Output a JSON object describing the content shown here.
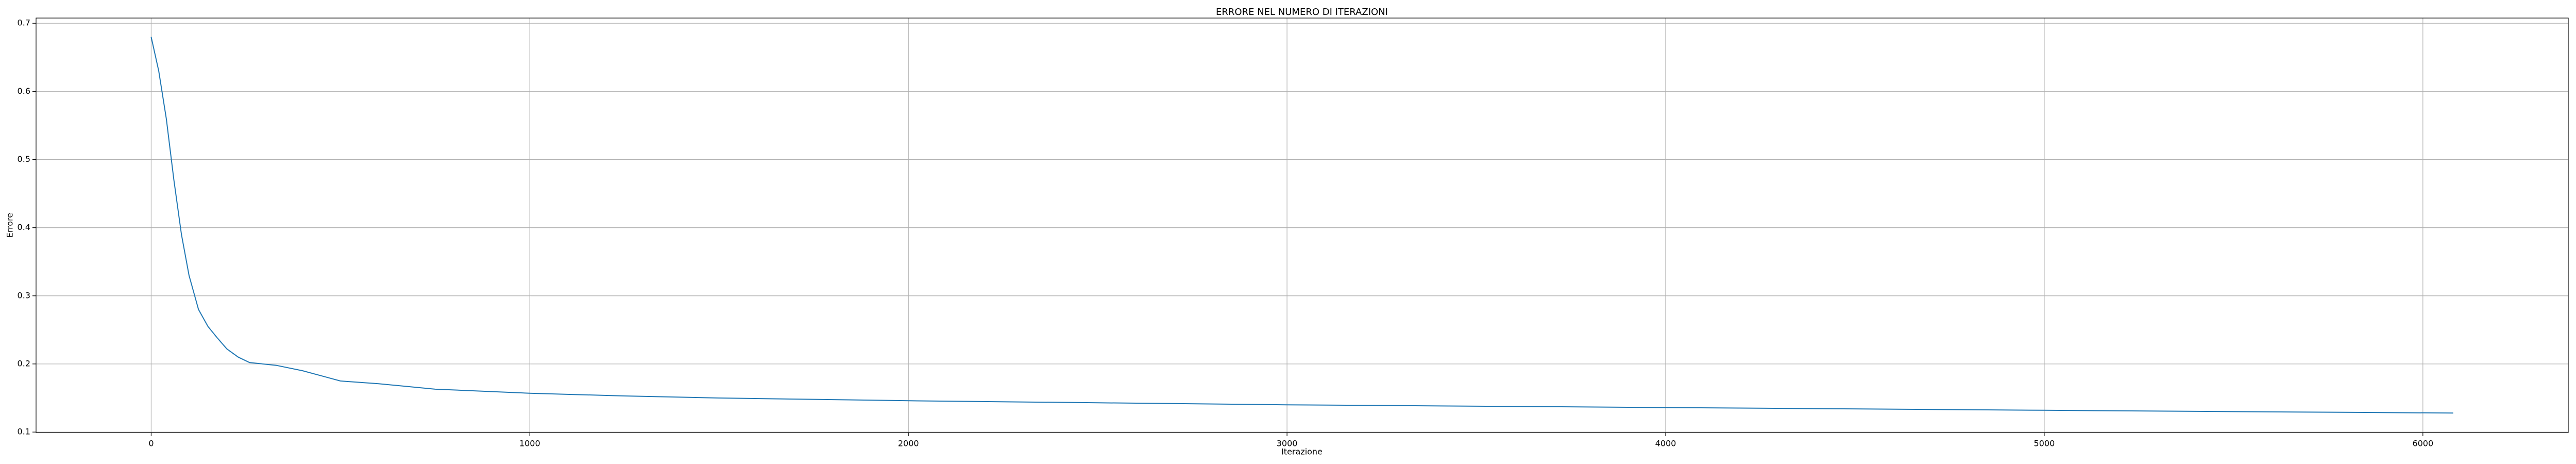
{
  "chart_data": {
    "type": "line",
    "title": "ERRORE NEL NUMERO DI ITERAZIONI",
    "x_label": "Iterazione",
    "y_label": "Errore",
    "x": [
      0,
      20,
      40,
      60,
      80,
      100,
      125,
      150,
      175,
      200,
      230,
      260,
      330,
      400,
      500,
      600,
      750,
      1000,
      1250,
      1500,
      2000,
      2500,
      3000,
      3500,
      4000,
      4500,
      5000,
      5500,
      6080
    ],
    "series": [
      {
        "name": "Errore",
        "color": "#1f77b4",
        "values": [
          0.68,
          0.63,
          0.56,
          0.47,
          0.39,
          0.33,
          0.28,
          0.255,
          0.238,
          0.222,
          0.21,
          0.202,
          0.198,
          0.19,
          0.175,
          0.171,
          0.163,
          0.157,
          0.153,
          0.15,
          0.146,
          0.143,
          0.14,
          0.138,
          0.136,
          0.134,
          0.132,
          0.13,
          0.128
        ]
      }
    ],
    "xlim": [
      -304,
      6384
    ],
    "ylim": [
      0.0993,
      0.7077
    ],
    "xticks": [
      0,
      1000,
      2000,
      3000,
      4000,
      5000,
      6000
    ],
    "yticks": [
      0.1,
      0.2,
      0.3,
      0.4,
      0.5,
      0.6,
      0.7
    ],
    "grid": true
  }
}
